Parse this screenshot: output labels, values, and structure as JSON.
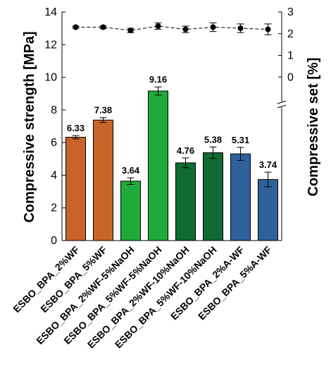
{
  "chart_data": {
    "type": "bar",
    "categories": [
      "ESBO_BPA_2%WF",
      "ESBO_BPA_5%WF",
      "ESBO_BPA_2%WF-5%NaOH",
      "ESBO_BPA_5%WF-5%NaOH",
      "ESBO_BPA_2%WF-10%NaOH",
      "ESBO_BPA_5%WF-10%NaOH",
      "ESBO_BPA_2%A-WF",
      "ESBO_BPA_5%A-WF"
    ],
    "values": [
      6.33,
      7.38,
      3.64,
      9.16,
      4.76,
      5.38,
      5.31,
      3.74
    ],
    "value_labels": [
      "6.33",
      "7.38",
      "3.64",
      "9.16",
      "4.76",
      "5.38",
      "5.31",
      "3.74"
    ],
    "errors": [
      0.1,
      0.15,
      0.2,
      0.25,
      0.3,
      0.35,
      0.4,
      0.45
    ],
    "bar_colors": [
      "#C8642A",
      "#C8642A",
      "#1FAA3A",
      "#1FAA3A",
      "#0F6B32",
      "#0F6B32",
      "#2E6199",
      "#2E6199"
    ],
    "ylabel": "Compressive strength [MPa]",
    "ylim": [
      0,
      14
    ],
    "yticks": [
      "0",
      "2",
      "4",
      "6",
      "8",
      "10",
      "12",
      "14"
    ],
    "secondary": {
      "ylabel": "Compressive set [%]",
      "ylim": [
        -1,
        3
      ],
      "yticks": [
        "0",
        "1",
        "2",
        "3"
      ],
      "values": [
        2.3,
        2.3,
        2.15,
        2.35,
        2.2,
        2.3,
        2.25,
        2.2
      ],
      "errors": [
        0.05,
        0.06,
        0.1,
        0.15,
        0.15,
        0.2,
        0.2,
        0.25
      ],
      "style": "dashed line with black circle markers"
    },
    "axis_break": "right axis",
    "grid": false
  }
}
